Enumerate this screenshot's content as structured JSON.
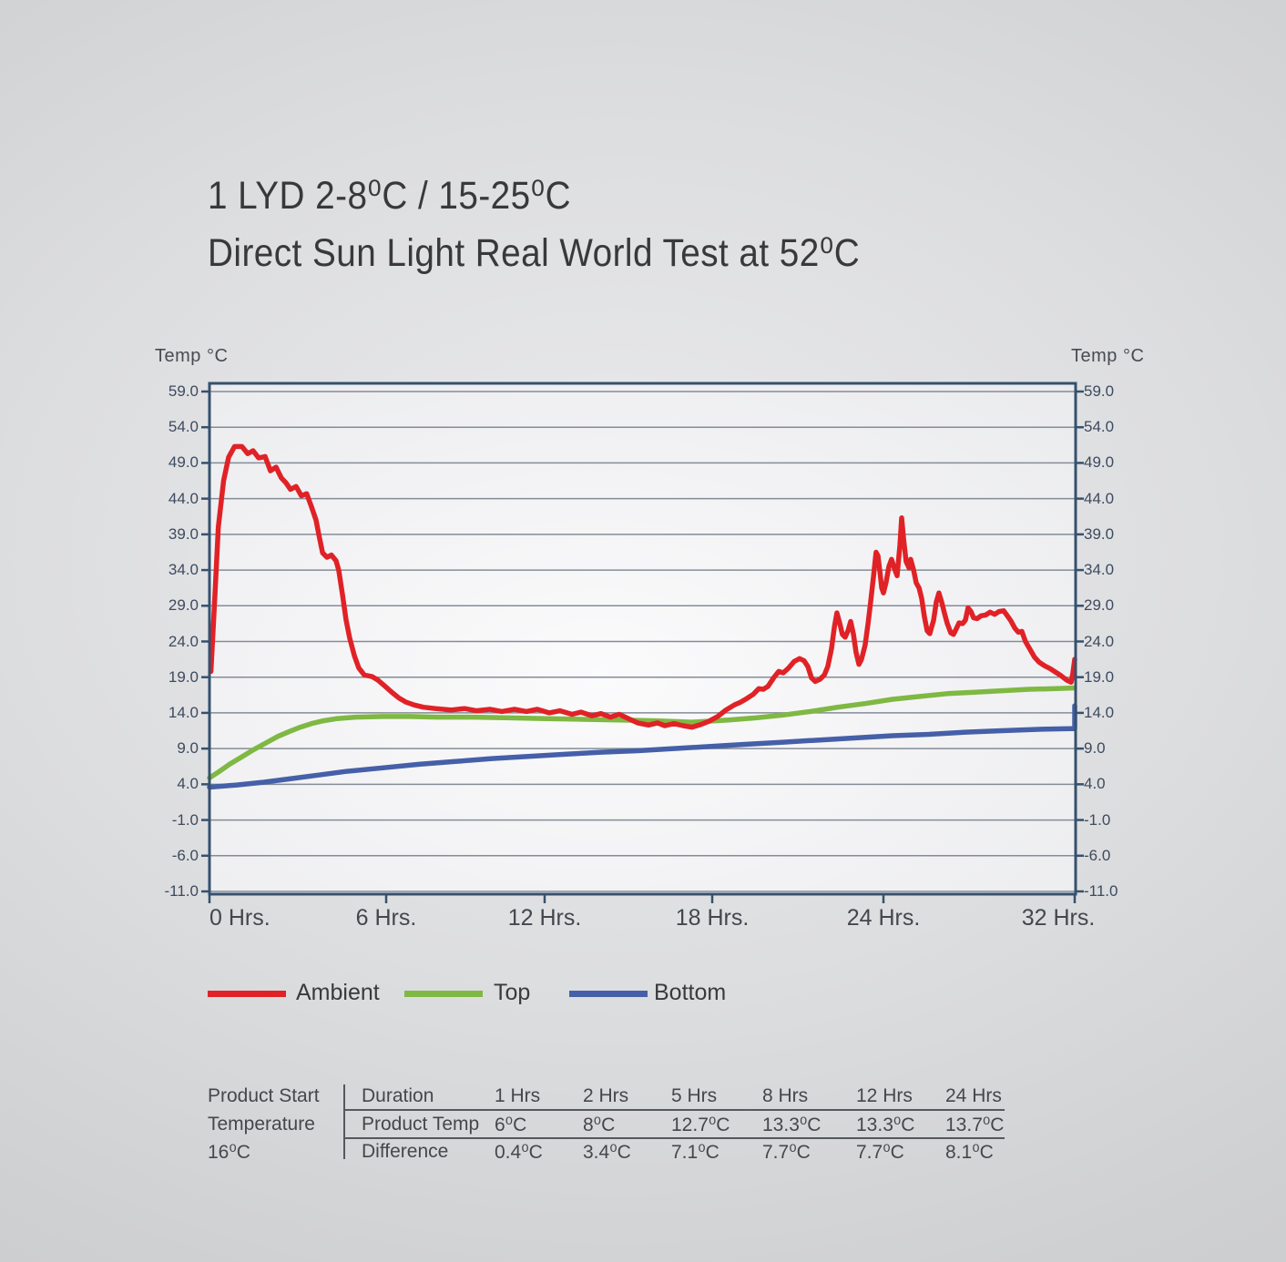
{
  "header": {
    "title_line1": "1 LYD 2-8⁰C / 15-25⁰C",
    "title_line2": "Direct Sun Light Real World Test at 52⁰C"
  },
  "colors": {
    "ambient": "#e02227",
    "top": "#7fb843",
    "bottom": "#4560a8",
    "chart_border": "#35516e",
    "gridline": "#858c97",
    "axis_label": "#3d4a5f",
    "text_dark": "#3a3a3c",
    "table_line": "#55585c"
  },
  "legend": {
    "items": [
      {
        "label": "Ambient",
        "color_key": "ambient"
      },
      {
        "label": "Top",
        "color_key": "top"
      },
      {
        "label": "Bottom",
        "color_key": "bottom"
      }
    ]
  },
  "chart_data": {
    "type": "line",
    "y_axis": {
      "title_left": "Temp °C",
      "title_right": "Temp °C",
      "min": -11,
      "max": 59,
      "ticks": [
        "59.0",
        "54.0",
        "49.0",
        "44.0",
        "39.0",
        "34.0",
        "29.0",
        "24.0",
        "19.0",
        "14.0",
        "9.0",
        "4.0",
        "-1.0",
        "-6.0",
        "-11.0"
      ],
      "grid": true
    },
    "x_axis": {
      "ticks": [
        {
          "label": "0 Hrs.",
          "hours": 0
        },
        {
          "label": "6 Hrs.",
          "hours": 6
        },
        {
          "label": "12 Hrs.",
          "hours": 12
        },
        {
          "label": "18 Hrs.",
          "hours": 18
        },
        {
          "label": "24 Hrs.",
          "hours": 24
        },
        {
          "label": "32 Hrs.",
          "hours": 32
        }
      ]
    },
    "series": [
      {
        "name": "Bottom",
        "color_key": "bottom",
        "points": [
          [
            0,
            3.6
          ],
          [
            0.93,
            3.9
          ],
          [
            1.86,
            4.3
          ],
          [
            2.78,
            4.8
          ],
          [
            3.71,
            5.3
          ],
          [
            4.64,
            5.8
          ],
          [
            5.88,
            6.3
          ],
          [
            7.24,
            6.8
          ],
          [
            8.62,
            7.2
          ],
          [
            10,
            7.6
          ],
          [
            11.38,
            7.9
          ],
          [
            12.72,
            8.2
          ],
          [
            14.02,
            8.5
          ],
          [
            15.33,
            8.7
          ],
          [
            16.63,
            9
          ],
          [
            17.94,
            9.3
          ],
          [
            19.21,
            9.6
          ],
          [
            20.49,
            9.9
          ],
          [
            21.77,
            10.2
          ],
          [
            23.04,
            10.5
          ],
          [
            24.38,
            10.8
          ],
          [
            25.9,
            11
          ],
          [
            27.43,
            11.3
          ],
          [
            28.95,
            11.5
          ],
          [
            30.48,
            11.7
          ],
          [
            31.81,
            11.8
          ],
          [
            32,
            11.8
          ],
          [
            32,
            15
          ]
        ]
      },
      {
        "name": "Top",
        "color_key": "top",
        "points": [
          [
            0,
            4.9
          ],
          [
            0.3,
            5.7
          ],
          [
            0.68,
            6.8
          ],
          [
            1.08,
            7.8
          ],
          [
            1.48,
            8.8
          ],
          [
            1.92,
            9.8
          ],
          [
            2.32,
            10.7
          ],
          [
            2.72,
            11.4
          ],
          [
            3.09,
            12
          ],
          [
            3.46,
            12.5
          ],
          [
            3.87,
            12.9
          ],
          [
            4.33,
            13.2
          ],
          [
            4.95,
            13.4
          ],
          [
            5.88,
            13.5
          ],
          [
            6.9,
            13.5
          ],
          [
            7.93,
            13.4
          ],
          [
            9.31,
            13.4
          ],
          [
            10.69,
            13.3
          ],
          [
            12.07,
            13.2
          ],
          [
            13.37,
            13.1
          ],
          [
            14.67,
            13
          ],
          [
            15.98,
            12.9
          ],
          [
            17.28,
            12.7
          ],
          [
            18.57,
            13
          ],
          [
            19.53,
            13.3
          ],
          [
            20.49,
            13.7
          ],
          [
            21.45,
            14.2
          ],
          [
            22.4,
            14.8
          ],
          [
            23.36,
            15.3
          ],
          [
            24.38,
            15.9
          ],
          [
            25.52,
            16.3
          ],
          [
            26.67,
            16.7
          ],
          [
            27.81,
            16.9
          ],
          [
            28.95,
            17.1
          ],
          [
            30.09,
            17.3
          ],
          [
            31.24,
            17.4
          ],
          [
            32,
            17.5
          ]
        ]
      },
      {
        "name": "Ambient",
        "color_key": "ambient",
        "points": [
          [
            0.05,
            19.8
          ],
          [
            0.18,
            30
          ],
          [
            0.3,
            40
          ],
          [
            0.48,
            46.5
          ],
          [
            0.65,
            49.8
          ],
          [
            0.85,
            51.3
          ],
          [
            1.1,
            51.3
          ],
          [
            1.3,
            50.3
          ],
          [
            1.48,
            50.7
          ],
          [
            1.67,
            49.7
          ],
          [
            1.89,
            49.9
          ],
          [
            2.07,
            47.9
          ],
          [
            2.26,
            48.4
          ],
          [
            2.44,
            46.9
          ],
          [
            2.6,
            46.2
          ],
          [
            2.75,
            45.3
          ],
          [
            2.94,
            45.7
          ],
          [
            3.12,
            44.4
          ],
          [
            3.3,
            44.7
          ],
          [
            3.46,
            42.9
          ],
          [
            3.62,
            41
          ],
          [
            3.71,
            39
          ],
          [
            3.84,
            36.4
          ],
          [
            3.99,
            35.8
          ],
          [
            4.14,
            36.1
          ],
          [
            4.3,
            35.3
          ],
          [
            4.39,
            34
          ],
          [
            4.52,
            30.5
          ],
          [
            4.64,
            27
          ],
          [
            4.76,
            24.5
          ],
          [
            4.92,
            22
          ],
          [
            5.07,
            20.3
          ],
          [
            5.26,
            19.3
          ],
          [
            5.51,
            19.1
          ],
          [
            5.72,
            18.6
          ],
          [
            5.94,
            17.8
          ],
          [
            6.21,
            16.9
          ],
          [
            6.48,
            16.1
          ],
          [
            6.76,
            15.5
          ],
          [
            7.07,
            15.1
          ],
          [
            7.41,
            14.8
          ],
          [
            7.86,
            14.6
          ],
          [
            8.45,
            14.4
          ],
          [
            8.97,
            14.6
          ],
          [
            9.41,
            14.3
          ],
          [
            9.93,
            14.5
          ],
          [
            10.38,
            14.2
          ],
          [
            10.86,
            14.5
          ],
          [
            11.31,
            14.2
          ],
          [
            11.72,
            14.5
          ],
          [
            12.16,
            14
          ],
          [
            12.55,
            14.3
          ],
          [
            12.98,
            13.8
          ],
          [
            13.3,
            14.1
          ],
          [
            13.7,
            13.6
          ],
          [
            14.02,
            13.9
          ],
          [
            14.35,
            13.4
          ],
          [
            14.67,
            13.8
          ],
          [
            15,
            13.2
          ],
          [
            15.33,
            12.6
          ],
          [
            15.72,
            12.3
          ],
          [
            16.04,
            12.6
          ],
          [
            16.3,
            12.2
          ],
          [
            16.63,
            12.5
          ],
          [
            16.96,
            12.2
          ],
          [
            17.28,
            12
          ],
          [
            17.61,
            12.4
          ],
          [
            17.87,
            12.8
          ],
          [
            18.19,
            13.5
          ],
          [
            18.48,
            14.4
          ],
          [
            18.77,
            15.1
          ],
          [
            18.99,
            15.5
          ],
          [
            19.21,
            16
          ],
          [
            19.44,
            16.6
          ],
          [
            19.63,
            17.4
          ],
          [
            19.79,
            17.3
          ],
          [
            19.95,
            17.7
          ],
          [
            20.17,
            19
          ],
          [
            20.33,
            19.8
          ],
          [
            20.49,
            19.6
          ],
          [
            20.68,
            20.3
          ],
          [
            20.87,
            21.2
          ],
          [
            21.06,
            21.6
          ],
          [
            21.22,
            21.3
          ],
          [
            21.35,
            20.5
          ],
          [
            21.48,
            18.9
          ],
          [
            21.61,
            18.4
          ],
          [
            21.77,
            18.7
          ],
          [
            21.93,
            19.3
          ],
          [
            22.05,
            20.5
          ],
          [
            22.18,
            23
          ],
          [
            22.28,
            26
          ],
          [
            22.37,
            28
          ],
          [
            22.47,
            26.5
          ],
          [
            22.56,
            25
          ],
          [
            22.66,
            24.6
          ],
          [
            22.76,
            25.5
          ],
          [
            22.85,
            26.8
          ],
          [
            22.95,
            25
          ],
          [
            23.04,
            22.5
          ],
          [
            23.14,
            20.8
          ],
          [
            23.23,
            21.5
          ],
          [
            23.36,
            23.5
          ],
          [
            23.46,
            26.5
          ],
          [
            23.55,
            29.5
          ],
          [
            23.65,
            33
          ],
          [
            23.74,
            36.5
          ],
          [
            23.81,
            36
          ],
          [
            23.87,
            34
          ],
          [
            23.94,
            31.5
          ],
          [
            24,
            30.8
          ],
          [
            24.11,
            32.3
          ],
          [
            24.23,
            34.5
          ],
          [
            24.34,
            35.5
          ],
          [
            24.46,
            34.2
          ],
          [
            24.57,
            33.2
          ],
          [
            24.69,
            37.5
          ],
          [
            24.76,
            41.3
          ],
          [
            24.84,
            38.5
          ],
          [
            24.95,
            35.2
          ],
          [
            25.07,
            34.3
          ],
          [
            25.14,
            35.5
          ],
          [
            25.26,
            34
          ],
          [
            25.37,
            32.2
          ],
          [
            25.49,
            31.5
          ],
          [
            25.6,
            30
          ],
          [
            25.71,
            27.5
          ],
          [
            25.83,
            25.5
          ],
          [
            25.94,
            25.1
          ],
          [
            26.1,
            27
          ],
          [
            26.21,
            29.5
          ],
          [
            26.32,
            30.8
          ],
          [
            26.44,
            29.5
          ],
          [
            26.55,
            28
          ],
          [
            26.67,
            26.5
          ],
          [
            26.82,
            25.2
          ],
          [
            26.93,
            25
          ],
          [
            27.05,
            25.8
          ],
          [
            27.16,
            26.6
          ],
          [
            27.31,
            26.5
          ],
          [
            27.43,
            27
          ],
          [
            27.54,
            28.7
          ],
          [
            27.66,
            28.2
          ],
          [
            27.77,
            27.3
          ],
          [
            27.92,
            27.2
          ],
          [
            28.08,
            27.6
          ],
          [
            28.27,
            27.7
          ],
          [
            28.46,
            28.1
          ],
          [
            28.65,
            27.8
          ],
          [
            28.84,
            28.2
          ],
          [
            29.03,
            28.3
          ],
          [
            29.18,
            27.6
          ],
          [
            29.33,
            26.9
          ],
          [
            29.49,
            25.9
          ],
          [
            29.64,
            25.3
          ],
          [
            29.79,
            25.4
          ],
          [
            29.94,
            24
          ],
          [
            30.13,
            22.9
          ],
          [
            30.32,
            21.8
          ],
          [
            30.51,
            21.1
          ],
          [
            30.74,
            20.6
          ],
          [
            30.97,
            20.2
          ],
          [
            31.2,
            19.7
          ],
          [
            31.43,
            19.2
          ],
          [
            31.66,
            18.6
          ],
          [
            31.85,
            18.3
          ],
          [
            31.92,
            19.5
          ],
          [
            32,
            21.5
          ]
        ]
      }
    ]
  },
  "table": {
    "left_label_lines": [
      "Product Start",
      "Temperature",
      "16⁰C"
    ],
    "rows": [
      {
        "label": "Duration",
        "values": [
          "1 Hrs",
          "2 Hrs",
          "5 Hrs",
          "8 Hrs",
          "12 Hrs",
          "24 Hrs"
        ]
      },
      {
        "label": "Product Temp",
        "values": [
          "6⁰C",
          "8⁰C",
          "12.7⁰C",
          "13.3⁰C",
          "13.3⁰C",
          "13.7⁰C"
        ]
      },
      {
        "label": "Difference",
        "values": [
          "0.4⁰C",
          "3.4⁰C",
          "7.1⁰C",
          "7.7⁰C",
          "7.7⁰C",
          "8.1⁰C"
        ]
      }
    ]
  }
}
